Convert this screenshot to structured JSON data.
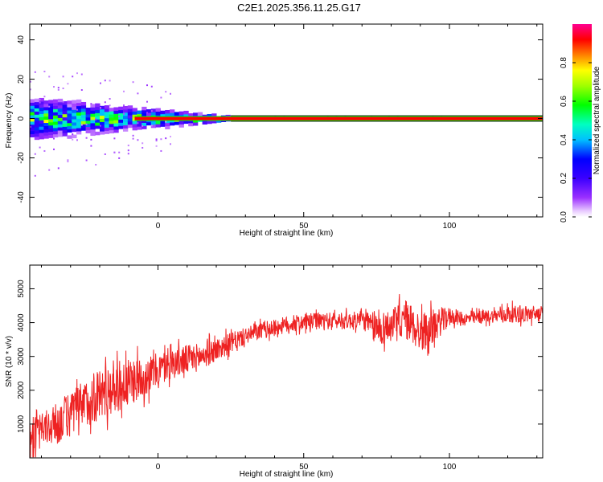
{
  "title": "C2E1.2025.356.11.25.G17",
  "chart_data": [
    {
      "type": "heatmap",
      "name": "spectrogram",
      "xlabel": "Height of straight line (km)",
      "ylabel": "Frequency (Hz)",
      "xlim": [
        -44,
        132
      ],
      "ylim": [
        -50,
        48
      ],
      "xticks": [
        0,
        50,
        100
      ],
      "yticks": [
        -40,
        -20,
        0,
        20,
        40
      ],
      "carrier_frequency_hz": 0,
      "spread_hz_at_start": 6,
      "spread_ends_at_km": 25,
      "colorbar": {
        "label": "Normalized spectral amplitude",
        "range": [
          0.0,
          1.0
        ],
        "ticks": [
          "0.0",
          "0.2",
          "0.4",
          "0.6",
          "0.8"
        ]
      },
      "colors": {
        "low": "#8800ff",
        "mid": "#00ff00",
        "high": "#ff0000"
      }
    },
    {
      "type": "line",
      "name": "snr",
      "xlabel": "Height of straight line (km)",
      "ylabel": "SNR (10 * v/v)",
      "xlim": [
        -44,
        132
      ],
      "ylim": [
        0,
        5700
      ],
      "xticks": [
        0,
        50,
        100
      ],
      "yticks": [
        1000,
        2000,
        3000,
        4000,
        5000
      ],
      "series": [
        {
          "name": "SNR",
          "color": "#ee2222",
          "x": [
            -44,
            -40,
            -35,
            -30,
            -25,
            -20,
            -15,
            -10,
            -5,
            0,
            5,
            10,
            15,
            20,
            25,
            30,
            35,
            40,
            45,
            50,
            55,
            60,
            65,
            70,
            75,
            80,
            85,
            90,
            95,
            100,
            105,
            110,
            115,
            120,
            125,
            132
          ],
          "y": [
            700,
            800,
            1000,
            1300,
            1600,
            1900,
            2100,
            2200,
            2400,
            2600,
            2800,
            2900,
            3000,
            3200,
            3400,
            3600,
            3750,
            3850,
            3950,
            4000,
            4050,
            4050,
            4050,
            4100,
            3800,
            3900,
            4100,
            3700,
            3900,
            4200,
            4100,
            4150,
            4200,
            4250,
            4250,
            4250
          ],
          "noise": [
            500,
            500,
            600,
            700,
            700,
            800,
            800,
            700,
            600,
            500,
            450,
            450,
            400,
            350,
            300,
            250,
            250,
            250,
            250,
            250,
            250,
            250,
            250,
            250,
            500,
            500,
            600,
            600,
            500,
            250,
            200,
            200,
            200,
            250,
            250,
            250
          ]
        }
      ]
    }
  ]
}
